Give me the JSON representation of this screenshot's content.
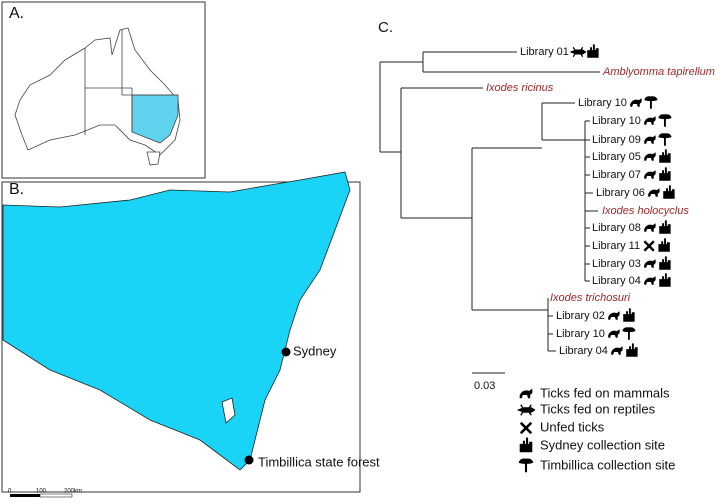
{
  "panels": {
    "a": {
      "label": "A."
    },
    "b": {
      "label": "B.",
      "places": [
        "Sydney",
        "Timbillica state forest"
      ],
      "scale": [
        "0",
        "100",
        "200km"
      ]
    },
    "c": {
      "label": "C.",
      "leaves": [
        "Library 01",
        "Amblyomma tapirellum",
        "Ixodes ricinus",
        "Library 10",
        "Library 10",
        "Library 09",
        "Library 05",
        "Library 07",
        "Library 06",
        "Ixodes holocyclus",
        "Library 08",
        "Library 11",
        "Library 03",
        "Library 04",
        "Ixodes trichosuri",
        "Library 02",
        "Library 10",
        "Library 04"
      ],
      "scale": "0.03"
    }
  },
  "legend": [
    "Ticks fed on mammals",
    "Ticks fed on reptiles",
    "Unfed ticks",
    "Sydney collection site",
    "Timbillica collection site"
  ]
}
